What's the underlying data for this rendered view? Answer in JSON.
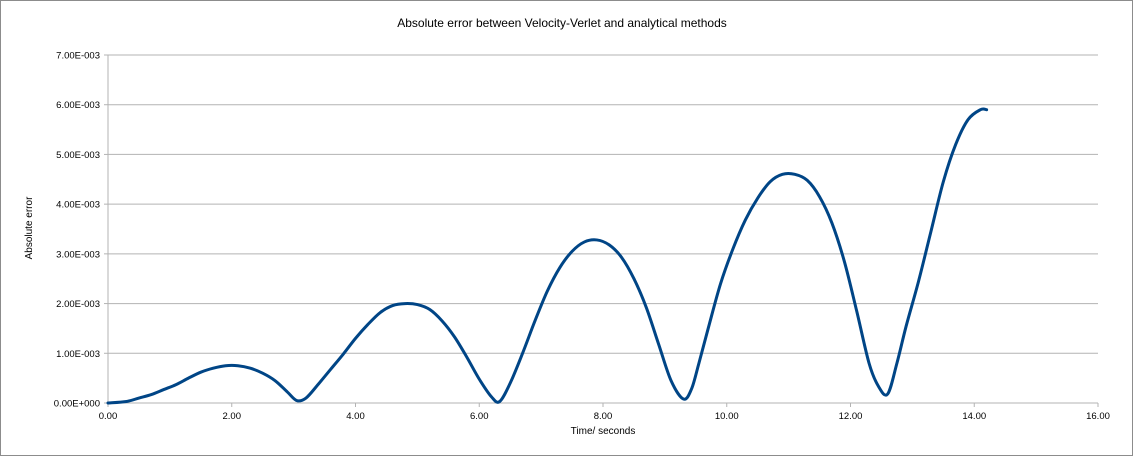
{
  "chart_data": {
    "type": "line",
    "title": "Absolute error between Velocity-Verlet and analytical methods",
    "xlabel": "Time/ seconds",
    "ylabel": "Absolute error",
    "xlim": [
      0,
      16
    ],
    "ylim": [
      0,
      0.007
    ],
    "x_ticks": [
      0,
      2,
      4,
      6,
      8,
      10,
      12,
      14,
      16
    ],
    "x_tick_labels": [
      "0.00",
      "2.00",
      "4.00",
      "6.00",
      "8.00",
      "10.00",
      "12.00",
      "14.00",
      "16.00"
    ],
    "y_ticks": [
      0,
      0.001,
      0.002,
      0.003,
      0.004,
      0.005,
      0.006,
      0.007
    ],
    "y_tick_labels": [
      "0.00E+000",
      "1.00E-003",
      "2.00E-003",
      "3.00E-003",
      "4.00E-003",
      "5.00E-003",
      "6.00E-003",
      "7.00E-003"
    ],
    "grid": "horizontal",
    "legend": "none",
    "line_color": "#004586",
    "series": [
      {
        "x": [
          0.0,
          0.3,
          0.5,
          0.7,
          0.9,
          1.1,
          1.3,
          1.5,
          1.7,
          1.9,
          2.1,
          2.3,
          2.5,
          2.7,
          2.9,
          3.05,
          3.2,
          3.4,
          3.6,
          3.8,
          4.0,
          4.2,
          4.4,
          4.6,
          4.8,
          5.0,
          5.2,
          5.4,
          5.6,
          5.8,
          6.0,
          6.2,
          6.33,
          6.5,
          6.7,
          6.9,
          7.1,
          7.3,
          7.5,
          7.7,
          7.9,
          8.1,
          8.3,
          8.5,
          8.7,
          8.9,
          9.1,
          9.3,
          9.43,
          9.55,
          9.7,
          9.9,
          10.1,
          10.3,
          10.5,
          10.7,
          10.9,
          11.1,
          11.3,
          11.5,
          11.7,
          11.9,
          12.1,
          12.3,
          12.45,
          12.6,
          12.75,
          12.9,
          13.1,
          13.3,
          13.5,
          13.7,
          13.9,
          14.1,
          14.2
        ],
        "y": [
          0.0,
          3e-05,
          0.0001,
          0.00017,
          0.00027,
          0.00037,
          0.0005,
          0.00062,
          0.0007,
          0.00075,
          0.00075,
          0.0007,
          0.0006,
          0.00045,
          0.00022,
          5e-05,
          0.0001,
          0.00038,
          0.00068,
          0.00098,
          0.0013,
          0.00158,
          0.00182,
          0.00196,
          0.002,
          0.00198,
          0.00188,
          0.00165,
          0.00133,
          0.00092,
          0.00048,
          0.00012,
          3e-05,
          0.0004,
          0.001,
          0.00165,
          0.00225,
          0.00272,
          0.00305,
          0.00324,
          0.00328,
          0.00318,
          0.00293,
          0.0025,
          0.00192,
          0.00118,
          0.00045,
          8e-05,
          0.00028,
          0.0008,
          0.0015,
          0.0024,
          0.0031,
          0.00368,
          0.00412,
          0.00445,
          0.0046,
          0.0046,
          0.00448,
          0.00415,
          0.00362,
          0.00285,
          0.00185,
          0.0008,
          0.00034,
          0.00018,
          0.0008,
          0.00155,
          0.00245,
          0.00345,
          0.00445,
          0.0052,
          0.0057,
          0.0059,
          0.0059
        ]
      }
    ]
  }
}
